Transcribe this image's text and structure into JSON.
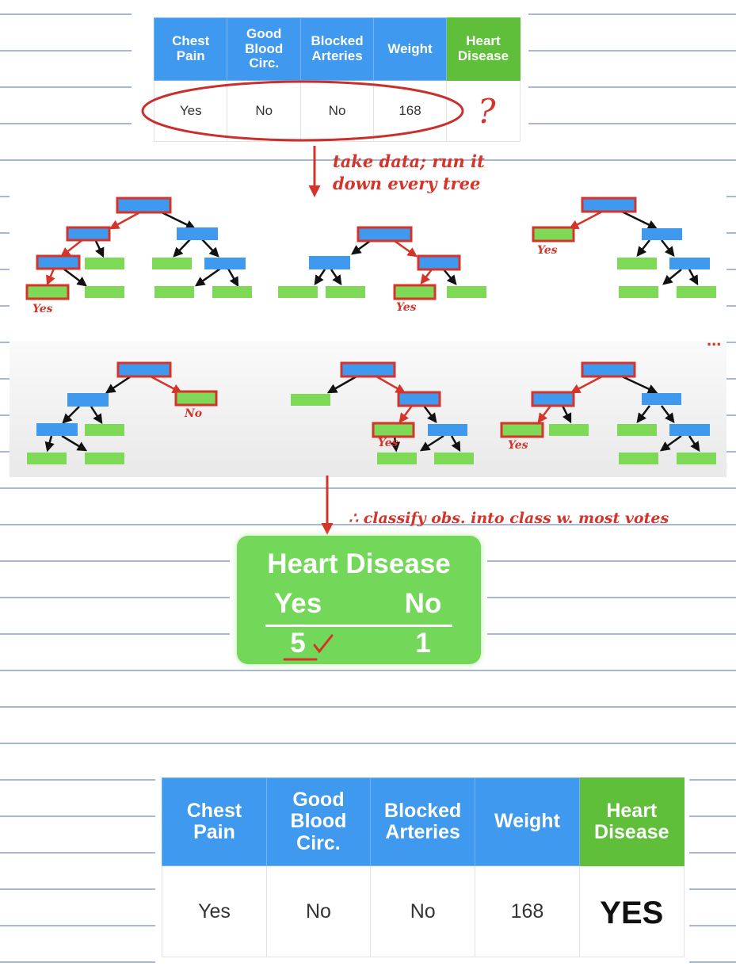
{
  "input_table": {
    "headers": [
      "Chest\nPain",
      "Good\nBlood\nCirc.",
      "Blocked\nArteries",
      "Weight",
      "Heart\nDisease"
    ],
    "row": [
      "Yes",
      "No",
      "No",
      "168"
    ],
    "unknown_mark": "?"
  },
  "annotations": {
    "take_data_line1": "take data; run it",
    "take_data_line2": "down every tree",
    "classify": "∴ classify obs. into class w. most votes",
    "ellipsis": "..."
  },
  "tree_labels": {
    "t1": "Yes",
    "t2": "Yes",
    "t3": "Yes",
    "t4": "No",
    "t5": "Yes",
    "t6": "Yes"
  },
  "vote_box": {
    "title": "Heart Disease",
    "yes_label": "Yes",
    "no_label": "No",
    "yes_count": "5",
    "no_count": "1"
  },
  "result_table": {
    "headers": [
      "Chest\nPain",
      "Good\nBlood\nCirc.",
      "Blocked\nArteries",
      "Weight",
      "Heart\nDisease"
    ],
    "row": [
      "Yes",
      "No",
      "No",
      "168",
      "YES"
    ]
  },
  "colors": {
    "header_blue": "#3f99ee",
    "header_green": "#5fbe3a",
    "node_blue": "#3f99ee",
    "leaf_green": "#7ed957",
    "ink_red": "#d4342a",
    "rule_blue": "#a9b7d6"
  }
}
